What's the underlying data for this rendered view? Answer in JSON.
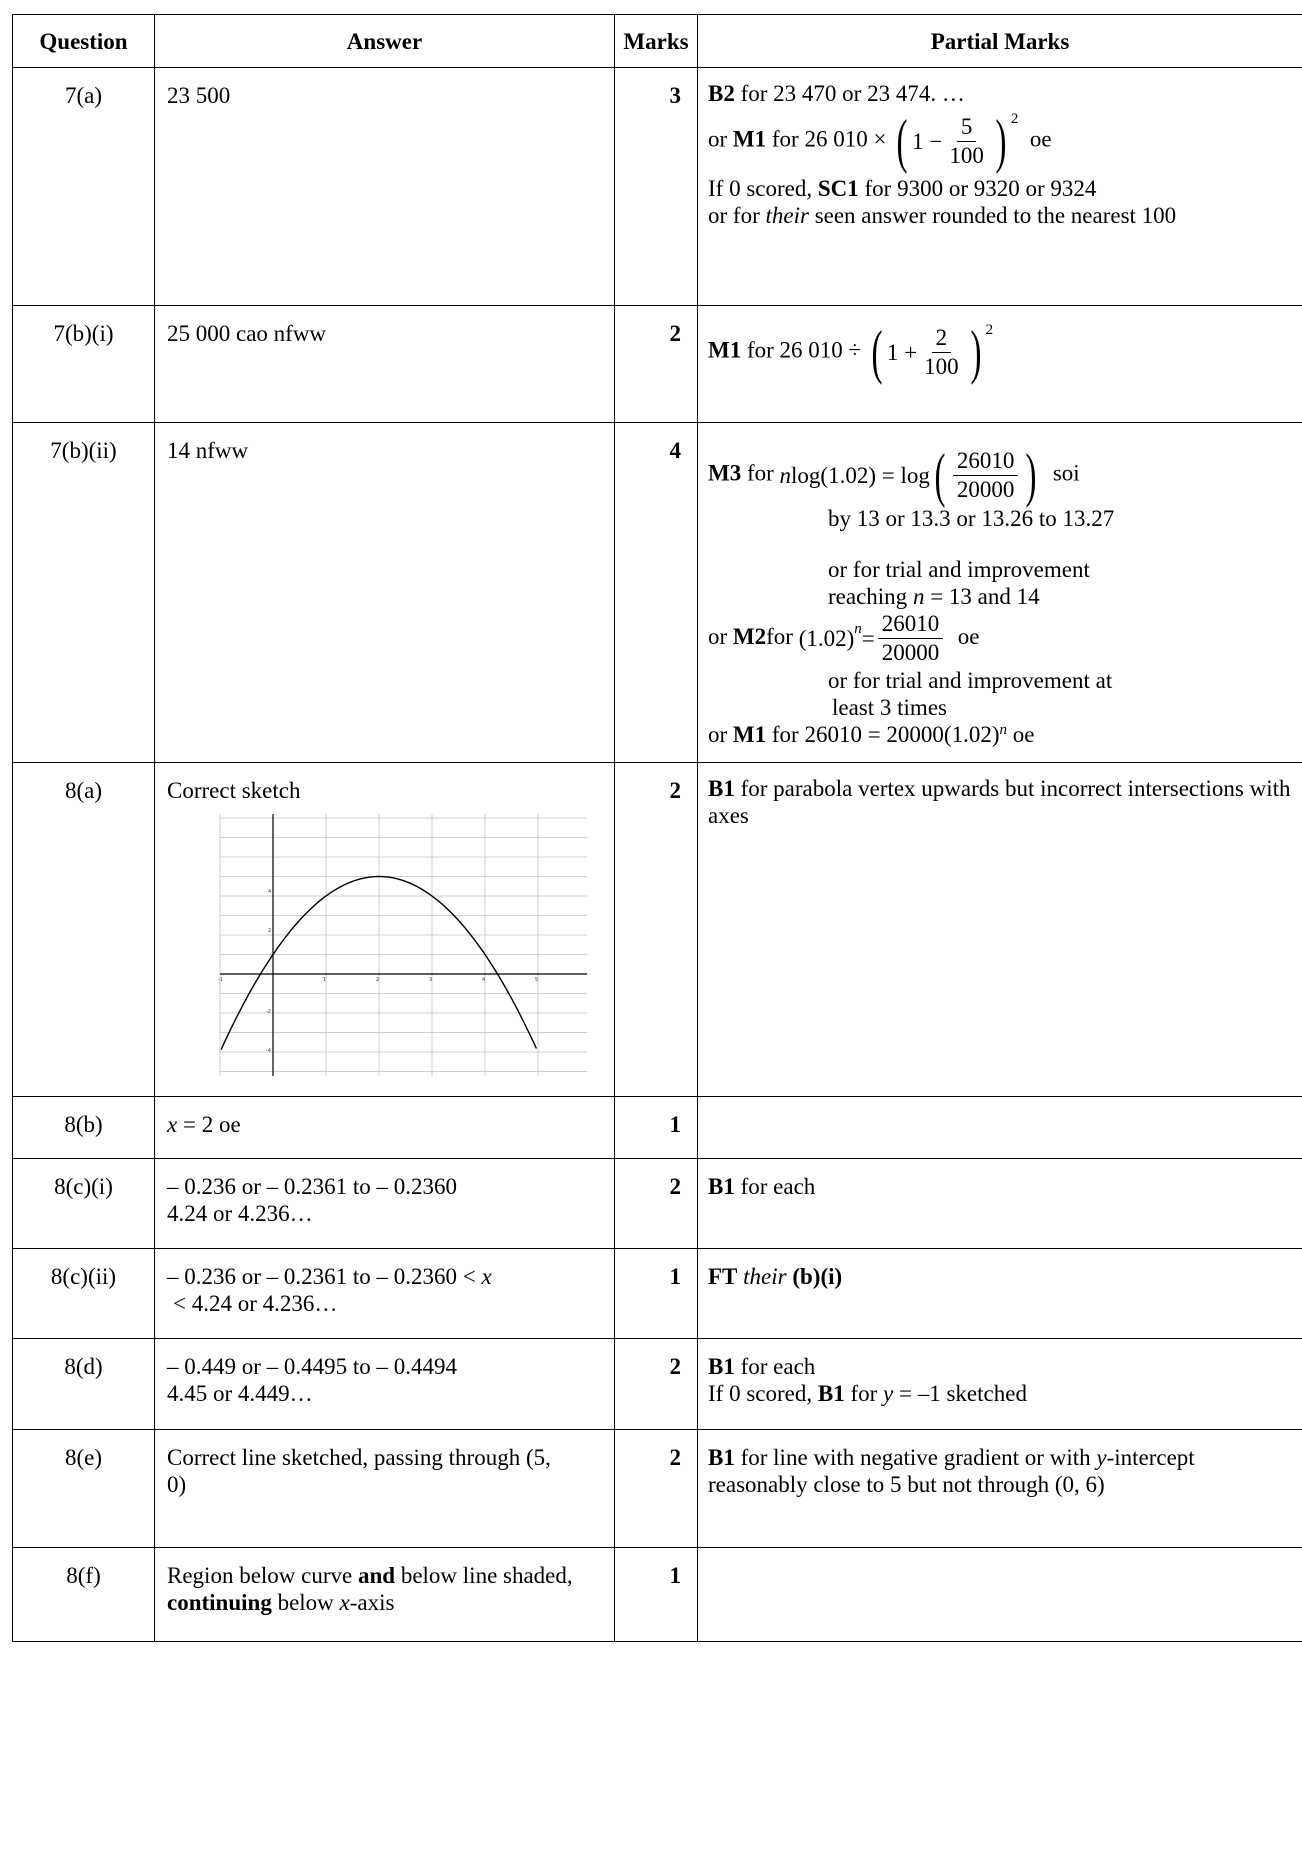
{
  "headers": {
    "question": "Question",
    "answer": "Answer",
    "marks": "Marks",
    "partial": "Partial Marks"
  },
  "rows": {
    "r1": {
      "q": "7(a)",
      "ans": "23 500",
      "marks": "3",
      "b2": "B2",
      "b2_text": " for 23 470 or 23 474. …",
      "or1": "or ",
      "m1": "M1",
      "m1_pre": " for 26 010 × ",
      "one_minus": "1 −",
      "frac_num": "5",
      "frac_den": "100",
      "sq": "2",
      "oe": "oe",
      "if0": "If 0 scored, ",
      "sc1": "SC1",
      "sc1_text": " for 9300 or 9320 or 9324",
      "or2": "or for ",
      "their": "their",
      "their_text": " seen answer rounded to the nearest 100"
    },
    "r2": {
      "q": "7(b)(i)",
      "ans": "25 000 cao nfww",
      "marks": "2",
      "m1": "M1",
      "m1_pre": " for 26 010 ÷ ",
      "one_plus": "1 +",
      "frac_num": "2",
      "frac_den": "100",
      "sq": "2"
    },
    "r3": {
      "q": "7(b)(ii)",
      "ans": "14 nfww",
      "marks": "4",
      "m3": "M3",
      "m3_pre": " for ",
      "n": "n",
      "log_eq": "log(1.02) = log",
      "frac_num": "26010",
      "frac_den": "20000",
      "soi": "soi",
      "by": "by 13 or 13.3 or 13.26 to 13.27",
      "trial1": "or for trial and improvement",
      "reach_pre": "reaching ",
      "reach_n": "n",
      "reach_post": " = 13 and 14",
      "or_m2_pre": "or ",
      "m2": "M2",
      "m2_for": "for ",
      "base": "(1.02)",
      "pow": "n",
      "eq": " = ",
      "m2_num": "26010",
      "m2_den": "20000",
      "m2_oe": "oe",
      "trial2": "or for trial and improvement at",
      "trial2b": "least 3 times",
      "or_m1_pre": "or ",
      "m1": "M1",
      "m1_text": " for 26010 = 20000(1.02)",
      "m1_pow": "n",
      "m1_oe": " oe"
    },
    "r4": {
      "q": "8(a)",
      "ans": "Correct sketch",
      "marks": "2",
      "b1": "B1",
      "b1_text": " for parabola vertex upwards but incorrect intersections with axes",
      "axis_labels": {
        "y4": "4",
        "y2": "2",
        "yn2": "-2",
        "yn4": "-4",
        "x1": "1",
        "x2": "2",
        "x3": "3",
        "x4": "4",
        "x5": "5",
        "xn1": "-1"
      }
    },
    "r5": {
      "q": "8(b)",
      "ans_x": "x",
      "ans_rest": " = 2 oe",
      "marks": "1"
    },
    "r6": {
      "q": "8(c)(i)",
      "ans1": "– 0.236 or  – 0.2361 to  – 0.2360",
      "ans2": "4.24 or 4.236…",
      "marks": "2",
      "b1": "B1",
      "b1_text": " for each"
    },
    "r7": {
      "q": "8(c)(ii)",
      "ans1": "– 0.236 or – 0.2361 to – 0.2360 < ",
      "ans1_x": "x",
      "ans2": "< 4.24 or 4.236…",
      "marks": "1",
      "ft": "FT",
      "their": "their",
      "ref": "(b)(i)"
    },
    "r8": {
      "q": "8(d)",
      "ans1": "– 0.449 or – 0.4495 to – 0.4494",
      "ans2": "4.45 or 4.449…",
      "marks": "2",
      "b1": "B1",
      "b1_text": " for each",
      "if0": "If 0 scored, ",
      "b1b": "B1",
      "b1b_pre": " for ",
      "y": "y",
      "b1b_post": " = –1 sketched"
    },
    "r9": {
      "q": "8(e)",
      "ans": "Correct line sketched, passing through (5, 0)",
      "marks": "2",
      "b1": "B1",
      "b1_text": " for line with negative gradient or with ",
      "y": "y",
      "b1_text2": "-intercept reasonably close to 5 but not through (0, 6)"
    },
    "r10": {
      "q": "8(f)",
      "ans_pre": "Region below curve ",
      "and": "and",
      "ans_mid": " below line shaded, ",
      "cont": "continuing",
      "ans_post": " below ",
      "x": "x",
      "ans_end": "-axis",
      "marks": "1"
    }
  }
}
